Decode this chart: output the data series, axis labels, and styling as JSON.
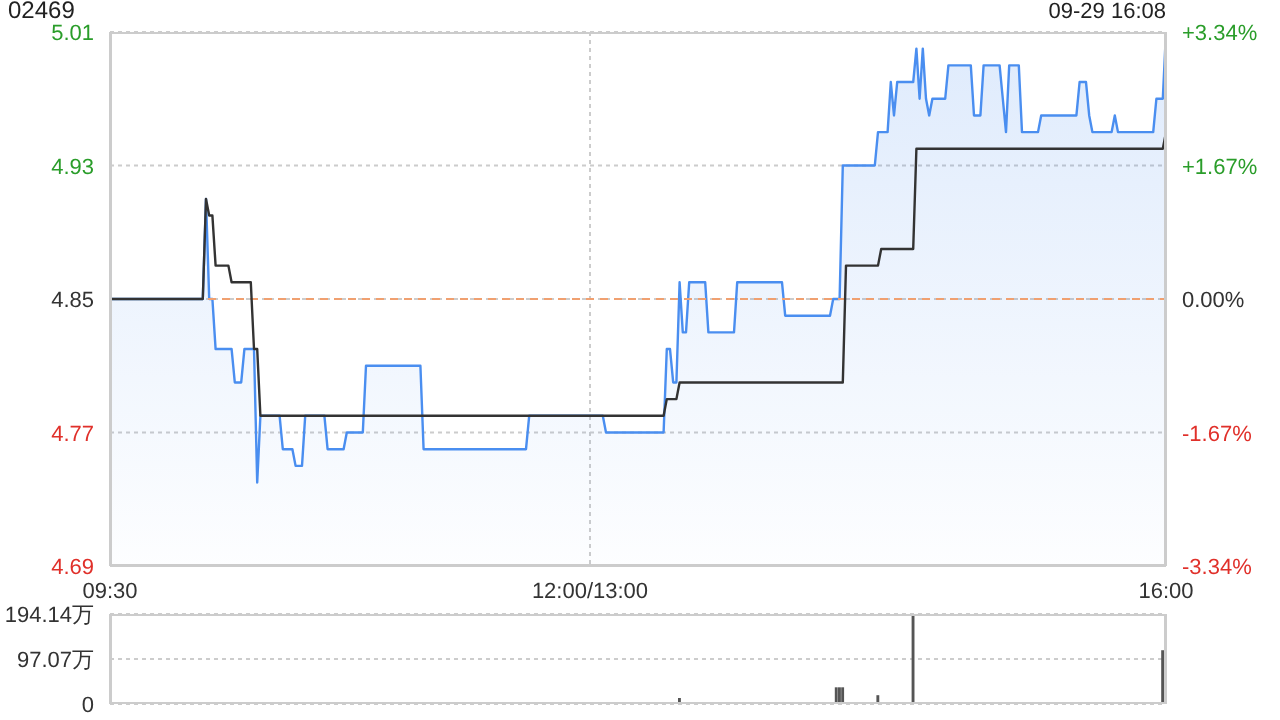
{
  "chart_data": [
    {
      "type": "line",
      "title": "02469",
      "subtitle": "09-29 16:08",
      "categories": [
        "09:30",
        null,
        null,
        null,
        null,
        null,
        null,
        null,
        null,
        null,
        null,
        null,
        null,
        null,
        null,
        null,
        null,
        null,
        null,
        null,
        null,
        null,
        null,
        null,
        null,
        null,
        null,
        null,
        null,
        null,
        null,
        null,
        null,
        null,
        null,
        null,
        null,
        null,
        null,
        null,
        null,
        null,
        null,
        null,
        null,
        null,
        null,
        null,
        null,
        null,
        null,
        null,
        null,
        null,
        null,
        null,
        null,
        null,
        null,
        null,
        null,
        null,
        null,
        null,
        null,
        null,
        null,
        null,
        null,
        null,
        null,
        null,
        null,
        null,
        null,
        null,
        null,
        null,
        null,
        null,
        null,
        null,
        null,
        null,
        null,
        null,
        null,
        null,
        null,
        null,
        null,
        null,
        null,
        null,
        null,
        null,
        null,
        null,
        null,
        null,
        null,
        null,
        null,
        null,
        null,
        null,
        null,
        null,
        null,
        null,
        null,
        null,
        null,
        null,
        null,
        null,
        null,
        null,
        null,
        null,
        null,
        null,
        null,
        null,
        null,
        null,
        null,
        null,
        null,
        null,
        null,
        null,
        null,
        null,
        null,
        null,
        null,
        null,
        null,
        null,
        null,
        null,
        null,
        null,
        null,
        null,
        null,
        null,
        null,
        null,
        "12:00/13:00",
        null,
        null,
        null,
        null,
        null,
        null,
        null,
        null,
        null,
        null,
        null,
        null,
        null,
        null,
        null,
        null,
        null,
        null,
        null,
        null,
        null,
        null,
        null,
        null,
        null,
        null,
        null,
        null,
        null,
        null,
        null,
        null,
        null,
        null,
        null,
        null,
        null,
        null,
        null,
        null,
        null,
        null,
        null,
        null,
        null,
        null,
        null,
        null,
        null,
        null,
        null,
        null,
        null,
        null,
        null,
        null,
        null,
        null,
        null,
        null,
        null,
        null,
        null,
        null,
        null,
        null,
        null,
        null,
        null,
        null,
        null,
        null,
        null,
        null,
        null,
        null,
        null,
        null,
        null,
        null,
        null,
        null,
        null,
        null,
        null,
        null,
        null,
        null,
        null,
        null,
        null,
        null,
        null,
        null,
        null,
        null,
        null,
        null,
        null,
        null,
        null,
        null,
        null,
        null,
        null,
        null,
        null,
        null,
        null,
        null,
        null,
        null,
        null,
        null,
        null,
        null,
        null,
        null,
        null,
        null,
        null,
        null,
        null,
        null,
        null,
        null,
        null,
        null,
        null,
        null,
        null,
        null,
        null,
        null,
        null,
        null,
        null,
        null,
        null,
        null,
        null,
        null,
        null,
        null,
        null,
        null,
        null,
        null,
        null,
        null,
        null,
        null,
        null,
        null,
        null,
        null,
        null,
        null,
        null,
        null,
        null,
        null,
        null,
        null,
        null,
        null,
        null,
        null,
        null,
        null,
        null,
        null,
        null,
        null,
        null,
        null,
        null,
        null,
        null,
        "16:00"
      ],
      "ylim": [
        4.69,
        5.01
      ],
      "yticks": [
        4.69,
        4.77,
        4.85,
        4.93,
        5.01
      ],
      "y2lim": [
        -3.34,
        3.34
      ],
      "y2ticks": [
        {
          "value": -3.34,
          "label": "-3.34%"
        },
        {
          "value": -1.67,
          "label": "-1.67%"
        },
        {
          "value": 0,
          "label": "0.00%"
        },
        {
          "value": 1.67,
          "label": "+1.67%"
        },
        {
          "value": 3.34,
          "label": "+3.34%"
        }
      ],
      "grid": true,
      "ref_lines": [
        {
          "axis": "y",
          "value": 4.85,
          "color": "#f0a070",
          "line_style": "dashed"
        }
      ],
      "series": [
        {
          "type": "area",
          "color": "#4a8ef0",
          "values": [
            4.85,
            4.85,
            4.85,
            4.85,
            4.85,
            4.85,
            4.85,
            4.85,
            4.85,
            4.85,
            4.85,
            4.85,
            4.85,
            4.85,
            4.85,
            4.85,
            4.85,
            4.85,
            4.85,
            4.85,
            4.85,
            4.85,
            4.85,
            4.85,
            4.85,
            4.85,
            4.85,
            4.85,
            4.85,
            4.85,
            4.91,
            4.85,
            4.85,
            4.82,
            4.82,
            4.82,
            4.82,
            4.82,
            4.82,
            4.8,
            4.8,
            4.8,
            4.82,
            4.82,
            4.82,
            4.82,
            4.74,
            4.78,
            4.78,
            4.78,
            4.78,
            4.78,
            4.78,
            4.78,
            4.76,
            4.76,
            4.76,
            4.76,
            4.75,
            4.75,
            4.75,
            4.78,
            4.78,
            4.78,
            4.78,
            4.78,
            4.78,
            4.78,
            4.76,
            4.76,
            4.76,
            4.76,
            4.76,
            4.76,
            4.77,
            4.77,
            4.77,
            4.77,
            4.77,
            4.77,
            4.81,
            4.81,
            4.81,
            4.81,
            4.81,
            4.81,
            4.81,
            4.81,
            4.81,
            4.81,
            4.81,
            4.81,
            4.81,
            4.81,
            4.81,
            4.81,
            4.81,
            4.81,
            4.76,
            4.76,
            4.76,
            4.76,
            4.76,
            4.76,
            4.76,
            4.76,
            4.76,
            4.76,
            4.76,
            4.76,
            4.76,
            4.76,
            4.76,
            4.76,
            4.76,
            4.76,
            4.76,
            4.76,
            4.76,
            4.76,
            4.76,
            4.76,
            4.76,
            4.76,
            4.76,
            4.76,
            4.76,
            4.76,
            4.76,
            4.76,
            4.76,
            4.78,
            4.78,
            4.78,
            4.78,
            4.78,
            4.78,
            4.78,
            4.78,
            4.78,
            4.78,
            4.78,
            4.78,
            4.78,
            4.78,
            4.78,
            4.78,
            4.78,
            4.78,
            4.78,
            4.78,
            4.78,
            4.78,
            4.78,
            4.78,
            4.77,
            4.77,
            4.77,
            4.77,
            4.77,
            4.77,
            4.77,
            4.77,
            4.77,
            4.77,
            4.77,
            4.77,
            4.77,
            4.77,
            4.77,
            4.77,
            4.77,
            4.77,
            4.77,
            4.82,
            4.82,
            4.8,
            4.8,
            4.86,
            4.83,
            4.83,
            4.86,
            4.86,
            4.86,
            4.86,
            4.86,
            4.86,
            4.83,
            4.83,
            4.83,
            4.83,
            4.83,
            4.83,
            4.83,
            4.83,
            4.83,
            4.86,
            4.86,
            4.86,
            4.86,
            4.86,
            4.86,
            4.86,
            4.86,
            4.86,
            4.86,
            4.86,
            4.86,
            4.86,
            4.86,
            4.86,
            4.84,
            4.84,
            4.84,
            4.84,
            4.84,
            4.84,
            4.84,
            4.84,
            4.84,
            4.84,
            4.84,
            4.84,
            4.84,
            4.84,
            4.84,
            4.85,
            4.85,
            4.85,
            4.93,
            4.93,
            4.93,
            4.93,
            4.93,
            4.93,
            4.93,
            4.93,
            4.93,
            4.93,
            4.93,
            4.95,
            4.95,
            4.95,
            4.95,
            4.98,
            4.96,
            4.98,
            4.98,
            4.98,
            4.98,
            4.98,
            4.98,
            5.0,
            4.97,
            5.0,
            4.97,
            4.96,
            4.97,
            4.97,
            4.97,
            4.97,
            4.97,
            4.99,
            4.99,
            4.99,
            4.99,
            4.99,
            4.99,
            4.99,
            4.99,
            4.96,
            4.96,
            4.96,
            4.99,
            4.99,
            4.99,
            4.99,
            4.99,
            4.99,
            4.97,
            4.95,
            4.99,
            4.99,
            4.99,
            4.99,
            4.95,
            4.95,
            4.95,
            4.95,
            4.95,
            4.95,
            4.96,
            4.96,
            4.96,
            4.96,
            4.96,
            4.96,
            4.96,
            4.96,
            4.96,
            4.96,
            4.96,
            4.96,
            4.98,
            4.98,
            4.98,
            4.96,
            4.95,
            4.95,
            4.95,
            4.95,
            4.95,
            4.95,
            4.95,
            4.96,
            4.95,
            4.95,
            4.95,
            4.95,
            4.95,
            4.95,
            4.95,
            4.95,
            4.95,
            4.95,
            4.95,
            4.95,
            4.97,
            4.97,
            4.97,
            5.01
          ]
        },
        {
          "type": "line",
          "color": "#333333",
          "values": [
            4.85,
            4.85,
            4.85,
            4.85,
            4.85,
            4.85,
            4.85,
            4.85,
            4.85,
            4.85,
            4.85,
            4.85,
            4.85,
            4.85,
            4.85,
            4.85,
            4.85,
            4.85,
            4.85,
            4.85,
            4.85,
            4.85,
            4.85,
            4.85,
            4.85,
            4.85,
            4.85,
            4.85,
            4.85,
            4.85,
            4.91,
            4.9,
            4.9,
            4.87,
            4.87,
            4.87,
            4.87,
            4.87,
            4.86,
            4.86,
            4.86,
            4.86,
            4.86,
            4.86,
            4.86,
            4.82,
            4.82,
            4.78,
            4.78,
            4.78,
            4.78,
            4.78,
            4.78,
            4.78,
            4.78,
            4.78,
            4.78,
            4.78,
            4.78,
            4.78,
            4.78,
            4.78,
            4.78,
            4.78,
            4.78,
            4.78,
            4.78,
            4.78,
            4.78,
            4.78,
            4.78,
            4.78,
            4.78,
            4.78,
            4.78,
            4.78,
            4.78,
            4.78,
            4.78,
            4.78,
            4.78,
            4.78,
            4.78,
            4.78,
            4.78,
            4.78,
            4.78,
            4.78,
            4.78,
            4.78,
            4.78,
            4.78,
            4.78,
            4.78,
            4.78,
            4.78,
            4.78,
            4.78,
            4.78,
            4.78,
            4.78,
            4.78,
            4.78,
            4.78,
            4.78,
            4.78,
            4.78,
            4.78,
            4.78,
            4.78,
            4.78,
            4.78,
            4.78,
            4.78,
            4.78,
            4.78,
            4.78,
            4.78,
            4.78,
            4.78,
            4.78,
            4.78,
            4.78,
            4.78,
            4.78,
            4.78,
            4.78,
            4.78,
            4.78,
            4.78,
            4.78,
            4.78,
            4.78,
            4.78,
            4.78,
            4.78,
            4.78,
            4.78,
            4.78,
            4.78,
            4.78,
            4.78,
            4.78,
            4.78,
            4.78,
            4.78,
            4.78,
            4.78,
            4.78,
            4.78,
            4.78,
            4.78,
            4.78,
            4.78,
            4.78,
            4.78,
            4.78,
            4.78,
            4.78,
            4.78,
            4.78,
            4.78,
            4.78,
            4.78,
            4.78,
            4.78,
            4.78,
            4.78,
            4.78,
            4.78,
            4.78,
            4.78,
            4.78,
            4.78,
            4.79,
            4.79,
            4.79,
            4.79,
            4.8,
            4.8,
            4.8,
            4.8,
            4.8,
            4.8,
            4.8,
            4.8,
            4.8,
            4.8,
            4.8,
            4.8,
            4.8,
            4.8,
            4.8,
            4.8,
            4.8,
            4.8,
            4.8,
            4.8,
            4.8,
            4.8,
            4.8,
            4.8,
            4.8,
            4.8,
            4.8,
            4.8,
            4.8,
            4.8,
            4.8,
            4.8,
            4.8,
            4.8,
            4.8,
            4.8,
            4.8,
            4.8,
            4.8,
            4.8,
            4.8,
            4.8,
            4.8,
            4.8,
            4.8,
            4.8,
            4.8,
            4.8,
            4.8,
            4.8,
            4.8,
            4.8,
            4.87,
            4.87,
            4.87,
            4.87,
            4.87,
            4.87,
            4.87,
            4.87,
            4.87,
            4.87,
            4.87,
            4.88,
            4.88,
            4.88,
            4.88,
            4.88,
            4.88,
            4.88,
            4.88,
            4.88,
            4.88,
            4.88,
            4.94,
            4.94,
            4.94,
            4.94,
            4.94,
            4.94,
            4.94,
            4.94,
            4.94,
            4.94,
            4.94,
            4.94,
            4.94,
            4.94,
            4.94,
            4.94,
            4.94,
            4.94,
            4.94,
            4.94,
            4.94,
            4.94,
            4.94,
            4.94,
            4.94,
            4.94,
            4.94,
            4.94,
            4.94,
            4.94,
            4.94,
            4.94,
            4.94,
            4.94,
            4.94,
            4.94,
            4.94,
            4.94,
            4.94,
            4.94,
            4.94,
            4.94,
            4.94,
            4.94,
            4.94,
            4.94,
            4.94,
            4.94,
            4.94,
            4.94,
            4.94,
            4.94,
            4.94,
            4.94,
            4.94,
            4.94,
            4.94,
            4.94,
            4.94,
            4.94,
            4.94,
            4.94,
            4.94,
            4.94,
            4.94,
            4.94,
            4.94,
            4.94,
            4.94,
            4.94,
            4.94,
            4.94,
            4.94,
            4.94,
            4.94,
            4.94,
            4.94,
            4.94,
            4.95
          ]
        }
      ]
    },
    {
      "type": "bar",
      "tick_labels": "y",
      "categories": [
        null,
        null,
        null,
        null,
        null,
        null,
        null,
        null,
        null,
        null,
        null,
        null,
        null,
        null,
        null,
        null,
        null,
        null,
        null,
        null,
        null,
        null,
        null,
        null,
        null,
        null,
        null,
        null,
        null,
        null,
        null,
        null,
        null,
        null,
        null,
        null,
        null,
        null,
        null,
        null,
        null,
        null,
        null,
        null,
        null,
        null,
        null,
        null,
        null,
        null,
        null,
        null,
        null,
        null,
        null,
        null,
        null,
        null,
        null,
        null,
        null,
        null,
        null,
        null,
        null,
        null,
        null,
        null,
        null,
        null,
        null,
        null,
        null,
        null,
        null,
        null,
        null,
        null,
        null,
        null,
        null,
        null,
        null,
        null,
        null,
        null,
        null,
        null,
        null,
        null,
        null,
        null,
        null,
        null,
        null,
        null,
        null,
        null,
        null,
        null,
        null,
        null,
        null,
        null,
        null,
        null,
        null,
        null,
        null,
        null,
        null,
        null,
        null,
        null,
        null,
        null,
        null,
        null,
        null,
        null,
        null,
        null,
        null,
        null,
        null,
        null,
        null,
        null,
        null,
        null,
        null,
        null,
        null,
        null,
        null,
        null,
        null,
        null,
        null,
        null,
        null,
        null,
        null,
        null,
        null,
        null,
        null,
        null,
        null,
        null,
        null,
        null,
        null,
        null,
        null,
        null,
        null,
        null,
        null,
        null,
        null,
        null,
        null,
        null,
        null,
        null,
        null,
        null,
        null,
        null,
        null,
        null,
        null,
        null,
        null,
        null,
        null,
        null,
        null,
        null,
        null,
        null,
        null,
        null,
        null,
        null,
        null,
        null,
        null,
        null,
        null,
        null,
        null,
        null,
        null,
        null,
        null,
        null,
        null,
        null,
        null,
        null,
        null,
        null,
        null,
        null,
        null,
        null,
        null,
        null,
        null,
        null,
        null,
        null,
        null,
        null,
        null,
        null,
        null,
        null,
        null,
        null,
        null,
        null,
        null,
        null,
        null,
        null,
        null,
        null,
        null,
        null,
        null,
        null,
        null,
        null,
        null,
        null,
        null,
        null,
        null,
        null,
        null,
        null,
        null,
        null,
        null,
        null,
        null,
        null,
        null,
        null,
        null,
        null,
        null,
        null,
        null,
        null,
        null,
        null,
        null,
        null,
        null,
        null,
        null,
        null,
        null,
        null,
        null,
        null,
        null,
        null,
        null,
        null,
        null,
        null,
        null,
        null,
        null,
        null,
        null,
        null,
        null,
        null,
        null,
        null,
        null,
        null,
        null,
        null,
        null,
        null,
        null,
        null,
        null,
        null,
        null,
        null,
        null,
        null,
        null,
        null,
        null,
        null,
        null,
        null,
        null,
        null,
        null,
        null,
        null,
        null,
        null,
        null,
        null,
        null,
        null,
        null,
        null,
        null,
        null,
        null,
        null,
        null,
        null,
        null,
        null,
        null,
        null,
        null,
        null
      ],
      "ylim": [
        0,
        194.14
      ],
      "yticks": [
        0,
        {
          "value": 97.07,
          "label": "97.07万"
        },
        {
          "value": 194.14,
          "label": "194.14万"
        }
      ],
      "grid": "y",
      "series": [
        {
          "color": "#555555",
          "values": [
            0,
            0,
            0,
            0,
            0,
            0,
            0,
            0,
            0,
            0,
            0,
            0,
            0,
            0,
            0,
            0,
            0,
            0,
            0,
            0,
            0,
            0,
            0,
            0,
            0,
            0,
            0,
            0,
            0,
            0,
            0,
            0,
            0,
            0,
            0,
            0,
            0,
            0,
            0,
            0,
            0,
            0,
            0,
            0,
            0,
            0,
            0,
            0,
            0,
            0,
            0,
            0,
            0,
            0,
            0,
            0,
            0,
            0,
            0,
            0,
            0,
            0,
            0,
            0,
            0,
            0,
            0,
            0,
            0,
            0,
            0,
            0,
            0,
            0,
            0,
            0,
            0,
            0,
            0,
            0,
            0,
            0,
            0,
            0,
            0,
            0,
            0,
            0,
            0,
            0,
            0,
            0,
            0,
            0,
            0,
            0,
            0,
            0,
            0,
            0,
            0,
            0,
            0,
            0,
            0,
            0,
            0,
            0,
            0,
            0,
            0,
            0,
            0,
            0,
            0,
            0,
            0,
            0,
            0,
            0,
            0,
            0,
            0,
            0,
            0,
            0,
            0,
            0,
            0,
            0,
            0,
            0,
            0,
            0,
            0,
            0,
            0,
            0,
            0,
            0,
            0,
            0,
            0,
            0,
            0,
            0,
            0,
            0,
            0,
            0,
            0,
            0,
            0,
            0,
            0,
            0,
            0,
            0,
            0,
            0,
            0,
            0,
            0,
            0,
            0,
            0,
            0,
            0,
            0,
            0,
            0,
            0,
            0,
            0,
            0,
            0,
            0,
            0,
            13,
            0,
            0,
            0,
            0,
            0,
            0,
            0,
            0,
            0,
            0,
            0,
            0,
            0,
            0,
            0,
            0,
            0,
            0,
            0,
            0,
            0,
            0,
            0,
            0,
            0,
            0,
            0,
            0,
            0,
            0,
            0,
            0,
            0,
            0,
            0,
            0,
            0,
            0,
            0,
            0,
            0,
            0,
            0,
            0,
            0,
            0,
            0,
            0,
            36,
            36,
            36,
            0,
            0,
            0,
            0,
            0,
            0,
            0,
            0,
            0,
            0,
            19,
            0,
            0,
            0,
            0,
            0,
            0,
            0,
            0,
            0,
            0,
            194,
            0,
            0,
            0,
            0,
            0,
            0,
            0,
            0,
            0,
            0,
            0,
            0,
            0,
            0,
            0,
            0,
            0,
            0,
            0,
            0,
            0,
            0,
            0,
            0,
            0,
            0,
            0,
            0,
            0,
            0,
            0,
            0,
            0,
            0,
            0,
            0,
            0,
            0,
            0,
            0,
            0,
            0,
            0,
            0,
            0,
            0,
            0,
            0,
            0,
            0,
            0,
            0,
            0,
            0,
            0,
            0,
            0,
            0,
            0,
            0,
            0,
            0,
            0,
            0,
            0,
            0,
            0,
            0,
            0,
            0,
            0,
            0,
            0,
            0,
            0,
            0,
            0,
            116,
            0
          ]
        }
      ]
    }
  ]
}
